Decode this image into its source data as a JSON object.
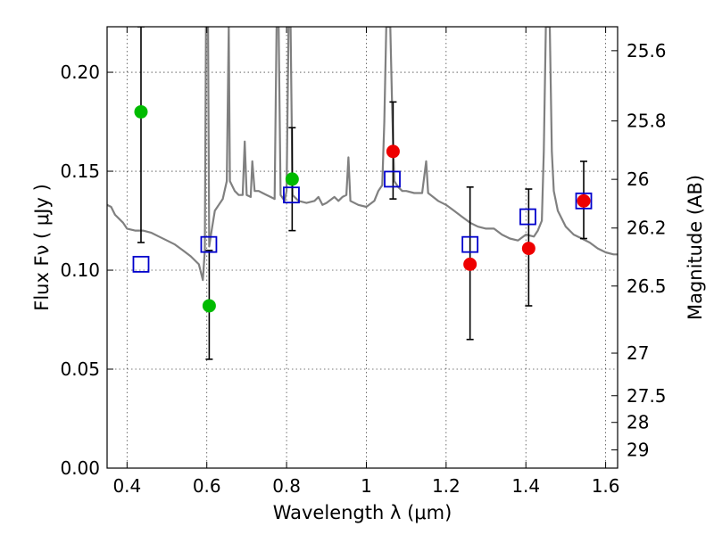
{
  "chart_data": {
    "type": "scatter",
    "xlabel": "Wavelength  λ (μm)",
    "ylabel": "Flux  Fν  ( μJy )",
    "ylabel_right": "Magnitude (AB)",
    "xlim": [
      0.35,
      1.63
    ],
    "ylim": [
      0.0,
      0.223
    ],
    "grid": true,
    "x_ticks": [
      0.4,
      0.6,
      0.8,
      1.0,
      1.2,
      1.4,
      1.6
    ],
    "x_tick_labels": [
      "0.4",
      "0.6",
      "0.8",
      "1",
      "1.2",
      "1.4",
      "1.6"
    ],
    "y_ticks": [
      0.0,
      0.05,
      0.1,
      0.15,
      0.2
    ],
    "y_tick_labels": [
      "0.00",
      "0.05",
      "0.10",
      "0.15",
      "0.20"
    ],
    "right_ticks": [
      {
        "label": "25.6",
        "flux": 0.2109
      },
      {
        "label": "25.8",
        "flux": 0.1754
      },
      {
        "label": "26",
        "flux": 0.1459
      },
      {
        "label": "26.2",
        "flux": 0.1213
      },
      {
        "label": "26.5",
        "flux": 0.092
      },
      {
        "label": "27",
        "flux": 0.0581
      },
      {
        "label": "27.5",
        "flux": 0.0366
      },
      {
        "label": "28",
        "flux": 0.0231
      },
      {
        "label": "29",
        "flux": 0.0092
      }
    ],
    "model_spectrum": {
      "color": "#808080",
      "points": [
        [
          0.35,
          0.133
        ],
        [
          0.36,
          0.132
        ],
        [
          0.37,
          0.128
        ],
        [
          0.38,
          0.126
        ],
        [
          0.39,
          0.124
        ],
        [
          0.4,
          0.121
        ],
        [
          0.42,
          0.12
        ],
        [
          0.44,
          0.12
        ],
        [
          0.46,
          0.119
        ],
        [
          0.48,
          0.117
        ],
        [
          0.5,
          0.115
        ],
        [
          0.52,
          0.113
        ],
        [
          0.54,
          0.11
        ],
        [
          0.56,
          0.107
        ],
        [
          0.58,
          0.103
        ],
        [
          0.59,
          0.095
        ],
        [
          0.595,
          0.11
        ],
        [
          0.598,
          0.223
        ],
        [
          0.603,
          0.223
        ],
        [
          0.606,
          0.112
        ],
        [
          0.612,
          0.12
        ],
        [
          0.62,
          0.13
        ],
        [
          0.63,
          0.133
        ],
        [
          0.64,
          0.136
        ],
        [
          0.65,
          0.145
        ],
        [
          0.655,
          0.223
        ],
        [
          0.658,
          0.145
        ],
        [
          0.67,
          0.14
        ],
        [
          0.68,
          0.138
        ],
        [
          0.69,
          0.138
        ],
        [
          0.695,
          0.165
        ],
        [
          0.7,
          0.138
        ],
        [
          0.71,
          0.137
        ],
        [
          0.714,
          0.155
        ],
        [
          0.72,
          0.14
        ],
        [
          0.73,
          0.14
        ],
        [
          0.74,
          0.139
        ],
        [
          0.75,
          0.138
        ],
        [
          0.76,
          0.137
        ],
        [
          0.77,
          0.136
        ],
        [
          0.775,
          0.223
        ],
        [
          0.78,
          0.223
        ],
        [
          0.785,
          0.138
        ],
        [
          0.795,
          0.135
        ],
        [
          0.8,
          0.14
        ],
        [
          0.805,
          0.223
        ],
        [
          0.81,
          0.223
        ],
        [
          0.815,
          0.138
        ],
        [
          0.83,
          0.135
        ],
        [
          0.85,
          0.134
        ],
        [
          0.87,
          0.135
        ],
        [
          0.88,
          0.137
        ],
        [
          0.89,
          0.133
        ],
        [
          0.9,
          0.134
        ],
        [
          0.92,
          0.137
        ],
        [
          0.93,
          0.135
        ],
        [
          0.94,
          0.137
        ],
        [
          0.95,
          0.138
        ],
        [
          0.955,
          0.157
        ],
        [
          0.96,
          0.135
        ],
        [
          0.98,
          0.133
        ],
        [
          1.0,
          0.132
        ],
        [
          1.02,
          0.135
        ],
        [
          1.03,
          0.14
        ],
        [
          1.04,
          0.143
        ],
        [
          1.045,
          0.175
        ],
        [
          1.05,
          0.223
        ],
        [
          1.06,
          0.223
        ],
        [
          1.065,
          0.18
        ],
        [
          1.07,
          0.145
        ],
        [
          1.08,
          0.142
        ],
        [
          1.09,
          0.14
        ],
        [
          1.1,
          0.14
        ],
        [
          1.12,
          0.139
        ],
        [
          1.14,
          0.139
        ],
        [
          1.15,
          0.155
        ],
        [
          1.155,
          0.139
        ],
        [
          1.18,
          0.135
        ],
        [
          1.2,
          0.133
        ],
        [
          1.22,
          0.13
        ],
        [
          1.24,
          0.127
        ],
        [
          1.26,
          0.124
        ],
        [
          1.28,
          0.122
        ],
        [
          1.3,
          0.121
        ],
        [
          1.32,
          0.121
        ],
        [
          1.34,
          0.118
        ],
        [
          1.36,
          0.116
        ],
        [
          1.38,
          0.115
        ],
        [
          1.4,
          0.118
        ],
        [
          1.42,
          0.117
        ],
        [
          1.43,
          0.12
        ],
        [
          1.44,
          0.125
        ],
        [
          1.445,
          0.16
        ],
        [
          1.45,
          0.223
        ],
        [
          1.46,
          0.223
        ],
        [
          1.465,
          0.16
        ],
        [
          1.47,
          0.14
        ],
        [
          1.48,
          0.13
        ],
        [
          1.5,
          0.122
        ],
        [
          1.52,
          0.118
        ],
        [
          1.54,
          0.116
        ],
        [
          1.56,
          0.114
        ],
        [
          1.58,
          0.111
        ],
        [
          1.6,
          0.109
        ],
        [
          1.62,
          0.108
        ],
        [
          1.63,
          0.108
        ]
      ]
    },
    "model_photometry": {
      "marker": "open-square",
      "color": "#0000cc",
      "points": [
        [
          0.435,
          0.103
        ],
        [
          0.605,
          0.113
        ],
        [
          0.812,
          0.138
        ],
        [
          1.065,
          0.146
        ],
        [
          1.26,
          0.113
        ],
        [
          1.405,
          0.127
        ],
        [
          1.545,
          0.135
        ]
      ]
    },
    "observed_green": {
      "marker": "filled-circle",
      "color": "#00bb00",
      "points": [
        {
          "x": 0.435,
          "y": 0.18,
          "lo": 0.114,
          "hi": 0.223
        },
        {
          "x": 0.606,
          "y": 0.082,
          "lo": 0.055,
          "hi": 0.11
        },
        {
          "x": 0.814,
          "y": 0.146,
          "lo": 0.12,
          "hi": 0.172
        }
      ]
    },
    "observed_red": {
      "marker": "filled-circle",
      "color": "#ee0000",
      "points": [
        {
          "x": 1.067,
          "y": 0.16,
          "lo": 0.136,
          "hi": 0.185
        },
        {
          "x": 1.26,
          "y": 0.103,
          "lo": 0.065,
          "hi": 0.142
        },
        {
          "x": 1.407,
          "y": 0.111,
          "lo": 0.082,
          "hi": 0.141
        },
        {
          "x": 1.545,
          "y": 0.135,
          "lo": 0.116,
          "hi": 0.155
        }
      ]
    }
  }
}
